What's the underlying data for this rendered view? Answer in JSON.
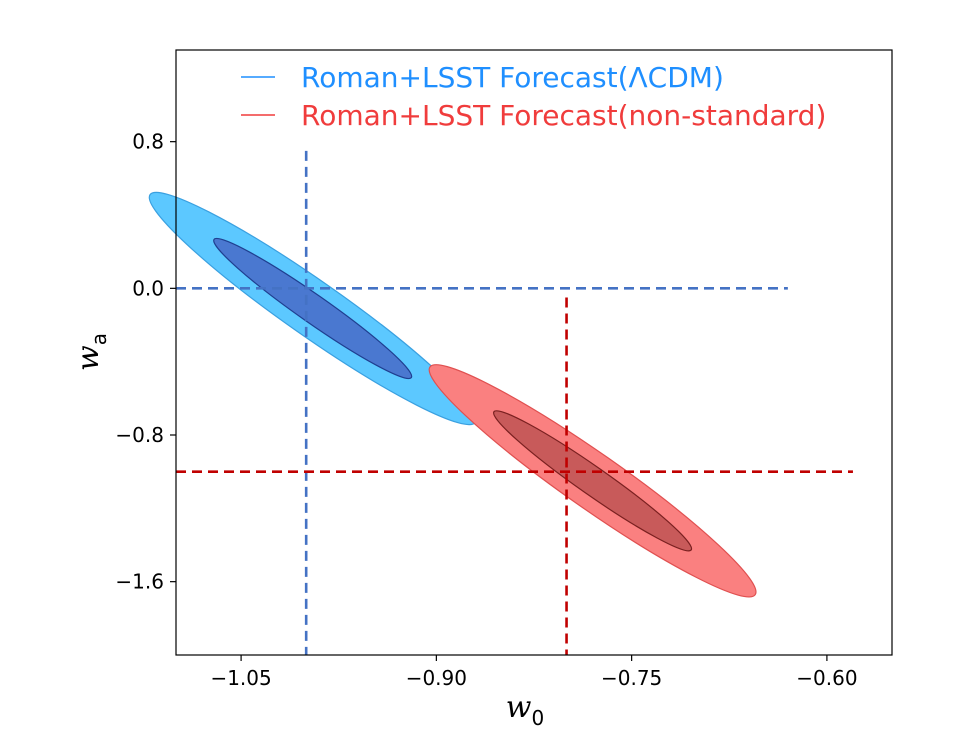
{
  "chart_data": {
    "type": "contour",
    "xlabel": "w",
    "xlabel_sub": "0",
    "ylabel": "w",
    "ylabel_sub": "a",
    "xlim": [
      -1.1,
      -0.55
    ],
    "ylim": [
      -2.0,
      1.3
    ],
    "xticks": [
      -1.05,
      -0.9,
      -0.75,
      -0.6
    ],
    "xtick_labels": [
      "−1.05",
      "−0.90",
      "−0.75",
      "−0.60"
    ],
    "yticks": [
      0.8,
      0.0,
      -0.8,
      -1.6
    ],
    "ytick_labels": [
      "0.8",
      "0.0",
      "−0.8",
      "−1.6"
    ],
    "grid": false,
    "legend": {
      "placement": "top-center"
    },
    "series": [
      {
        "name": "Roman+LSST Forecast(ΛCDM)",
        "color": "#1f8fff",
        "fill_outer": "#5cc8ff",
        "fill_inner": "#4a78d0",
        "edge_outer": "#3aa0e0",
        "edge_inner": "#1f3f90",
        "reference": {
          "w0": -1.0,
          "wa": 0.0,
          "line_color": "#4472c4"
        },
        "center": {
          "w0": -0.995,
          "wa": -0.11
        },
        "contour_68": {
          "semi_major": 0.37,
          "semi_minor": 0.043
        },
        "contour_95": {
          "semi_major": 0.61,
          "semi_minor": 0.085
        }
      },
      {
        "name": "Roman+LSST Forecast(non-standard)",
        "color": "#f03c3c",
        "fill_outer": "#fa8080",
        "fill_inner": "#c85a5a",
        "edge_outer": "#e05050",
        "edge_inner": "#7a2020",
        "reference": {
          "w0": -0.8,
          "wa": -1.0,
          "line_color": "#c00000"
        },
        "center": {
          "w0": -0.78,
          "wa": -1.05
        },
        "contour_68": {
          "semi_major": 0.37,
          "semi_minor": 0.043
        },
        "contour_95": {
          "semi_major": 0.61,
          "semi_minor": 0.085
        }
      }
    ]
  }
}
